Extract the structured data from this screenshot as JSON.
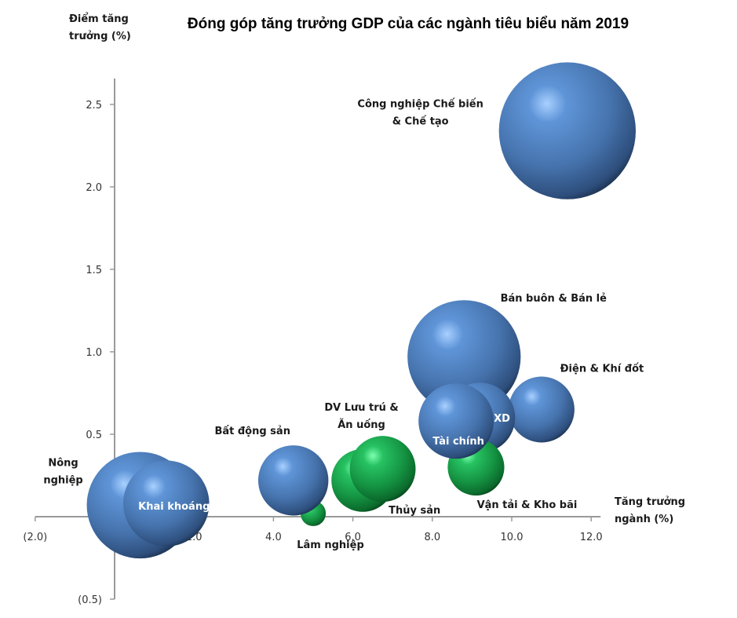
{
  "chart_data": {
    "type": "bubble",
    "title": "Đóng góp tăng trưởng GDP của các ngành tiêu biểu năm 2019",
    "xlabel": [
      "Tăng trưởng",
      "ngành (%)"
    ],
    "ylabel": [
      "Điểm tăng",
      "trưởng (%)"
    ],
    "xlim": [
      -2.0,
      12.0
    ],
    "ylim": [
      -0.5,
      2.6
    ],
    "x_ticks": [
      -2.0,
      0.0,
      2.0,
      4.0,
      6.0,
      8.0,
      10.0,
      12.0
    ],
    "x_tick_labels": [
      "(2.0)",
      "-",
      "2.0",
      "4.0",
      "6.0",
      "8.0",
      "10.0",
      "12.0"
    ],
    "y_ticks": [
      -0.5,
      0.0,
      0.5,
      1.0,
      1.5,
      2.0,
      2.5
    ],
    "y_tick_labels": [
      "(0.5)",
      "-",
      "0.5",
      "1.0",
      "1.5",
      "2.0",
      "2.5"
    ],
    "grid": false,
    "legend": "none",
    "colors": {
      "blue": "#4f81bd",
      "green": "#1fa24a"
    },
    "series": [
      {
        "name": "Nông nghiệp",
        "x": 0.64,
        "y": 0.07,
        "size": 46,
        "color": "blue",
        "label_lines": [
          "Nông",
          "nghiệp"
        ],
        "label_pos": "left"
      },
      {
        "name": "Khai khoáng",
        "x": 1.3,
        "y": 0.08,
        "size": 30,
        "color": "blue",
        "label_lines": [
          "Khai khoáng"
        ],
        "label_pos": "inside"
      },
      {
        "name": "Lâm nghiệp",
        "x": 5.0,
        "y": 0.02,
        "size": 2.6,
        "color": "green",
        "label_lines": [
          "Lâm nghiệp"
        ],
        "label_pos": "below"
      },
      {
        "name": "Bất động sản",
        "x": 4.5,
        "y": 0.22,
        "size": 20,
        "color": "blue",
        "label_lines": [
          "Bất động sản"
        ],
        "label_pos": "above"
      },
      {
        "name": "Thủy sản",
        "x": 6.25,
        "y": 0.22,
        "size": 16,
        "color": "green",
        "label_lines": [
          "Thủy sản"
        ],
        "label_pos": "below-right"
      },
      {
        "name": "DV Lưu trú & Ăn uống",
        "x": 6.75,
        "y": 0.29,
        "size": 17.6,
        "color": "green",
        "label_lines": [
          "DV Lưu trú &",
          "Ăn uống"
        ],
        "label_pos": "above"
      },
      {
        "name": "Bán buôn & Bán lẻ",
        "x": 8.8,
        "y": 0.97,
        "size": 52,
        "color": "blue",
        "label_lines": [
          "Bán buôn & Bán lẻ"
        ],
        "label_pos": "above-right"
      },
      {
        "name": "Điện & Khí đốt",
        "x": 10.75,
        "y": 0.65,
        "size": 17.6,
        "color": "blue",
        "label_lines": [
          "Điện & Khí đốt"
        ],
        "label_pos": "above-right"
      },
      {
        "name": "XD",
        "x": 9.2,
        "y": 0.6,
        "size": 20,
        "color": "blue",
        "label_lines": [
          "XD"
        ],
        "label_pos": "inside-right"
      },
      {
        "name": "Vận tải & Kho bãi",
        "x": 9.1,
        "y": 0.3,
        "size": 13,
        "color": "green",
        "label_lines": [
          "Vận tải & Kho bãi"
        ],
        "label_pos": "below"
      },
      {
        "name": "Tài chính",
        "x": 8.6,
        "y": 0.58,
        "size": 23,
        "color": "blue",
        "label_lines": [
          "Tài chính"
        ],
        "label_pos": "inside-bottom"
      },
      {
        "name": "Công nghiệp Chế biến & Chế tạo",
        "x": 11.4,
        "y": 2.34,
        "size": 76,
        "color": "blue",
        "label_lines": [
          "Công nghiệp Chế biến",
          "& Chế tạo"
        ],
        "label_pos": "left"
      }
    ]
  }
}
